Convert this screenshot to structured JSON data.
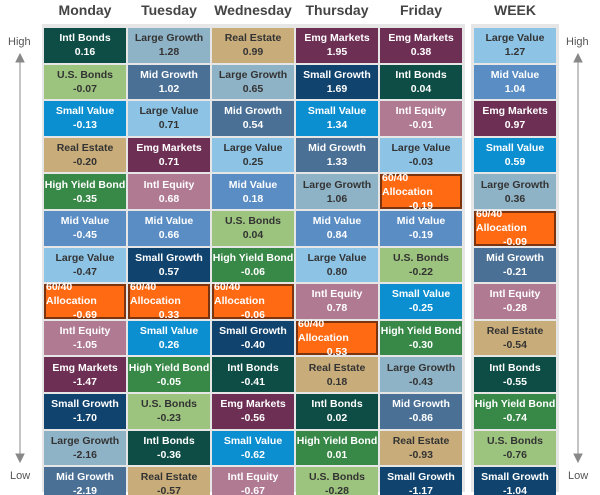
{
  "axis": {
    "high": "High",
    "low": "Low"
  },
  "columns": [
    {
      "header": "Monday",
      "cells": [
        {
          "label": "Intl Bonds",
          "value": "0.16",
          "color": "#0d4d45"
        },
        {
          "label": "U.S. Bonds",
          "value": "-0.07",
          "color": "#9cc47e"
        },
        {
          "label": "Small Value",
          "value": "-0.13",
          "color": "#0b8fd0"
        },
        {
          "label": "Real Estate",
          "value": "-0.20",
          "color": "#c8ad7b"
        },
        {
          "label": "High Yield Bond",
          "value": "-0.35",
          "color": "#388848"
        },
        {
          "label": "Mid Value",
          "value": "-0.45",
          "color": "#5a8dc4"
        },
        {
          "label": "Large Value",
          "value": "-0.47",
          "color": "#8dc4e6"
        },
        {
          "label": "60/40 Allocation",
          "value": "-0.69",
          "color": "#ff6a13",
          "border": "#7a3510"
        },
        {
          "label": "Intl Equity",
          "value": "-1.05",
          "color": "#b07a93"
        },
        {
          "label": "Emg Markets",
          "value": "-1.47",
          "color": "#6e2f55"
        },
        {
          "label": "Small Growth",
          "value": "-1.70",
          "color": "#10436e"
        },
        {
          "label": "Large Growth",
          "value": "-2.16",
          "color": "#8fb3c6"
        },
        {
          "label": "Mid Growth",
          "value": "-2.19",
          "color": "#4a7096"
        }
      ]
    },
    {
      "header": "Tuesday",
      "cells": [
        {
          "label": "Large Growth",
          "value": "1.28",
          "color": "#8fb3c6"
        },
        {
          "label": "Mid Growth",
          "value": "1.02",
          "color": "#4a7096"
        },
        {
          "label": "Large Value",
          "value": "0.71",
          "color": "#8dc4e6"
        },
        {
          "label": "Emg Markets",
          "value": "0.71",
          "color": "#6e2f55"
        },
        {
          "label": "Intl Equity",
          "value": "0.68",
          "color": "#b07a93"
        },
        {
          "label": "Mid Value",
          "value": "0.66",
          "color": "#5a8dc4"
        },
        {
          "label": "Small Growth",
          "value": "0.57",
          "color": "#10436e"
        },
        {
          "label": "60/40 Allocation",
          "value": "0.33",
          "color": "#ff6a13",
          "border": "#7a3510"
        },
        {
          "label": "Small Value",
          "value": "0.26",
          "color": "#0b8fd0"
        },
        {
          "label": "High Yield Bond",
          "value": "-0.05",
          "color": "#388848"
        },
        {
          "label": "U.S. Bonds",
          "value": "-0.23",
          "color": "#9cc47e"
        },
        {
          "label": "Intl Bonds",
          "value": "-0.36",
          "color": "#0d4d45"
        },
        {
          "label": "Real Estate",
          "value": "-0.57",
          "color": "#c8ad7b"
        }
      ]
    },
    {
      "header": "Wednesday",
      "cells": [
        {
          "label": "Real Estate",
          "value": "0.99",
          "color": "#c8ad7b"
        },
        {
          "label": "Large Growth",
          "value": "0.65",
          "color": "#8fb3c6"
        },
        {
          "label": "Mid Growth",
          "value": "0.54",
          "color": "#4a7096"
        },
        {
          "label": "Large Value",
          "value": "0.25",
          "color": "#8dc4e6"
        },
        {
          "label": "Mid Value",
          "value": "0.18",
          "color": "#5a8dc4"
        },
        {
          "label": "U.S. Bonds",
          "value": "0.04",
          "color": "#9cc47e"
        },
        {
          "label": "High Yield Bond",
          "value": "-0.06",
          "color": "#388848"
        },
        {
          "label": "60/40 Allocation",
          "value": "-0.06",
          "color": "#ff6a13",
          "border": "#7a3510"
        },
        {
          "label": "Small Growth",
          "value": "-0.40",
          "color": "#10436e"
        },
        {
          "label": "Intl Bonds",
          "value": "-0.41",
          "color": "#0d4d45"
        },
        {
          "label": "Emg Markets",
          "value": "-0.56",
          "color": "#6e2f55"
        },
        {
          "label": "Small Value",
          "value": "-0.62",
          "color": "#0b8fd0"
        },
        {
          "label": "Intl Equity",
          "value": "-0.67",
          "color": "#b07a93"
        }
      ]
    },
    {
      "header": "Thursday",
      "cells": [
        {
          "label": "Emg Markets",
          "value": "1.95",
          "color": "#6e2f55"
        },
        {
          "label": "Small Growth",
          "value": "1.69",
          "color": "#10436e"
        },
        {
          "label": "Small Value",
          "value": "1.34",
          "color": "#0b8fd0"
        },
        {
          "label": "Mid Growth",
          "value": "1.33",
          "color": "#4a7096"
        },
        {
          "label": "Large Growth",
          "value": "1.06",
          "color": "#8fb3c6"
        },
        {
          "label": "Mid Value",
          "value": "0.84",
          "color": "#5a8dc4"
        },
        {
          "label": "Large Value",
          "value": "0.80",
          "color": "#8dc4e6"
        },
        {
          "label": "Intl Equity",
          "value": "0.78",
          "color": "#b07a93"
        },
        {
          "label": "60/40 Allocation",
          "value": "0.53",
          "color": "#ff6a13",
          "border": "#7a3510"
        },
        {
          "label": "Real Estate",
          "value": "0.18",
          "color": "#c8ad7b"
        },
        {
          "label": "Intl Bonds",
          "value": "0.02",
          "color": "#0d4d45"
        },
        {
          "label": "High Yield Bond",
          "value": "0.01",
          "color": "#388848"
        },
        {
          "label": "U.S. Bonds",
          "value": "-0.28",
          "color": "#9cc47e"
        }
      ]
    },
    {
      "header": "Friday",
      "cells": [
        {
          "label": "Emg Markets",
          "value": "0.38",
          "color": "#6e2f55"
        },
        {
          "label": "Intl Bonds",
          "value": "0.04",
          "color": "#0d4d45"
        },
        {
          "label": "Intl Equity",
          "value": "-0.01",
          "color": "#b07a93"
        },
        {
          "label": "Large Value",
          "value": "-0.03",
          "color": "#8dc4e6"
        },
        {
          "label": "60/40 Allocation",
          "value": "-0.19",
          "color": "#ff6a13",
          "border": "#7a3510"
        },
        {
          "label": "Mid Value",
          "value": "-0.19",
          "color": "#5a8dc4"
        },
        {
          "label": "U.S. Bonds",
          "value": "-0.22",
          "color": "#9cc47e"
        },
        {
          "label": "Small Value",
          "value": "-0.25",
          "color": "#0b8fd0"
        },
        {
          "label": "High Yield Bond",
          "value": "-0.30",
          "color": "#388848"
        },
        {
          "label": "Large Growth",
          "value": "-0.43",
          "color": "#8fb3c6"
        },
        {
          "label": "Mid Growth",
          "value": "-0.86",
          "color": "#4a7096"
        },
        {
          "label": "Real Estate",
          "value": "-0.93",
          "color": "#c8ad7b"
        },
        {
          "label": "Small Growth",
          "value": "-1.17",
          "color": "#10436e"
        }
      ]
    },
    {
      "header": "WEEK",
      "cells": [
        {
          "label": "Large Value",
          "value": "1.27",
          "color": "#8dc4e6"
        },
        {
          "label": "Mid Value",
          "value": "1.04",
          "color": "#5a8dc4"
        },
        {
          "label": "Emg Markets",
          "value": "0.97",
          "color": "#6e2f55"
        },
        {
          "label": "Small Value",
          "value": "0.59",
          "color": "#0b8fd0"
        },
        {
          "label": "Large Growth",
          "value": "0.36",
          "color": "#8fb3c6"
        },
        {
          "label": "60/40 Allocation",
          "value": "-0.09",
          "color": "#ff6a13",
          "border": "#7a3510"
        },
        {
          "label": "Mid Growth",
          "value": "-0.21",
          "color": "#4a7096"
        },
        {
          "label": "Intl Equity",
          "value": "-0.28",
          "color": "#b07a93"
        },
        {
          "label": "Real Estate",
          "value": "-0.54",
          "color": "#c8ad7b"
        },
        {
          "label": "Intl Bonds",
          "value": "-0.55",
          "color": "#0d4d45"
        },
        {
          "label": "High Yield Bond",
          "value": "-0.74",
          "color": "#388848"
        },
        {
          "label": "U.S. Bonds",
          "value": "-0.76",
          "color": "#9cc47e"
        },
        {
          "label": "Small Growth",
          "value": "-1.04",
          "color": "#10436e"
        }
      ]
    }
  ]
}
